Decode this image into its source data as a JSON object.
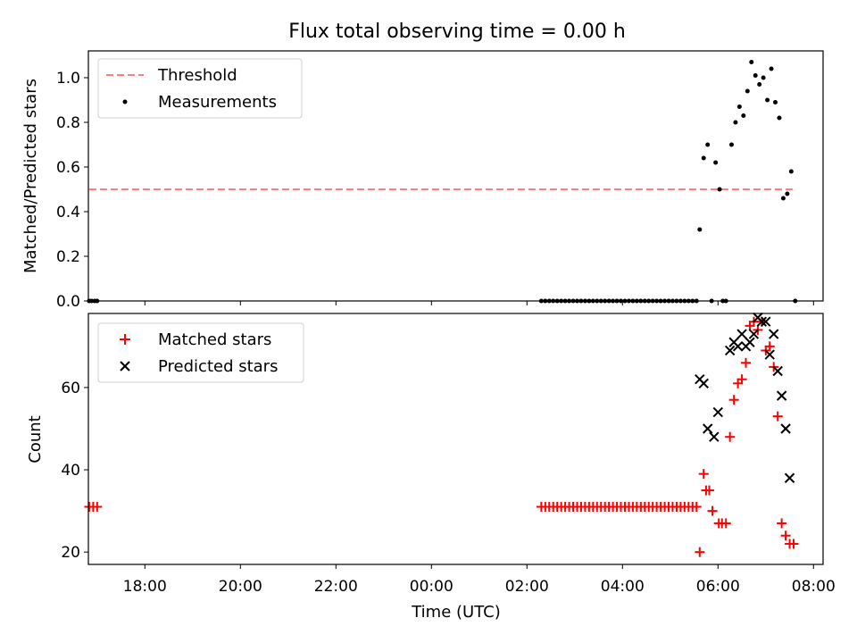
{
  "figure": {
    "title": "Flux total observing time = 0.00 h",
    "xlabel": "Time (UTC)"
  },
  "chart_data": [
    {
      "type": "scatter",
      "panel": "top",
      "ylabel": "Matched/Predicted stars",
      "ylim": [
        0,
        1.12
      ],
      "xlim": [
        "16:49",
        "08:12"
      ],
      "x_tick_labels": [
        "18:00",
        "20:00",
        "22:00",
        "00:00",
        "02:00",
        "04:00",
        "06:00",
        "08:00"
      ],
      "y_ticks": [
        "0.0",
        "0.2",
        "0.4",
        "0.6",
        "0.8",
        "1.0"
      ],
      "legend_position": "top-left",
      "threshold": {
        "name": "Threshold",
        "value": 0.5,
        "x_range": [
          "16:50",
          "07:37"
        ],
        "color": "#ff7f7f"
      },
      "series": [
        {
          "name": "Measurements",
          "color": "#000000",
          "points": [
            [
              "16:50",
              0
            ],
            [
              "16:53",
              0
            ],
            [
              "16:57",
              0
            ],
            [
              "17:00",
              0
            ],
            [
              "02:18",
              0
            ],
            [
              "02:23",
              0
            ],
            [
              "02:28",
              0
            ],
            [
              "02:33",
              0
            ],
            [
              "02:38",
              0
            ],
            [
              "02:43",
              0
            ],
            [
              "02:48",
              0
            ],
            [
              "02:53",
              0
            ],
            [
              "02:58",
              0
            ],
            [
              "03:03",
              0
            ],
            [
              "03:08",
              0
            ],
            [
              "03:13",
              0
            ],
            [
              "03:18",
              0
            ],
            [
              "03:23",
              0
            ],
            [
              "03:28",
              0
            ],
            [
              "03:33",
              0
            ],
            [
              "03:38",
              0
            ],
            [
              "03:43",
              0
            ],
            [
              "03:48",
              0
            ],
            [
              "03:53",
              0
            ],
            [
              "03:58",
              0
            ],
            [
              "04:03",
              0
            ],
            [
              "04:08",
              0
            ],
            [
              "04:13",
              0
            ],
            [
              "04:18",
              0
            ],
            [
              "04:23",
              0
            ],
            [
              "04:28",
              0
            ],
            [
              "04:33",
              0
            ],
            [
              "04:38",
              0
            ],
            [
              "04:43",
              0
            ],
            [
              "04:48",
              0
            ],
            [
              "04:53",
              0
            ],
            [
              "04:58",
              0
            ],
            [
              "05:03",
              0
            ],
            [
              "05:08",
              0
            ],
            [
              "05:13",
              0
            ],
            [
              "05:18",
              0
            ],
            [
              "05:23",
              0
            ],
            [
              "05:28",
              0
            ],
            [
              "05:33",
              0
            ],
            [
              "05:37",
              0.32
            ],
            [
              "05:42",
              0.64
            ],
            [
              "05:47",
              0.7
            ],
            [
              "05:52",
              0.0
            ],
            [
              "05:57",
              0.62
            ],
            [
              "06:02",
              0.5
            ],
            [
              "06:06",
              0.0
            ],
            [
              "06:10",
              0.0
            ],
            [
              "06:17",
              0.7
            ],
            [
              "06:22",
              0.8
            ],
            [
              "06:27",
              0.87
            ],
            [
              "06:32",
              0.83
            ],
            [
              "06:37",
              0.94
            ],
            [
              "06:42",
              1.07
            ],
            [
              "06:47",
              1.01
            ],
            [
              "06:52",
              0.97
            ],
            [
              "06:57",
              1.0
            ],
            [
              "07:02",
              0.9
            ],
            [
              "07:07",
              1.04
            ],
            [
              "07:12",
              0.89
            ],
            [
              "07:17",
              0.82
            ],
            [
              "07:22",
              0.46
            ],
            [
              "07:27",
              0.48
            ],
            [
              "07:32",
              0.58
            ],
            [
              "07:37",
              0.0
            ]
          ]
        }
      ]
    },
    {
      "type": "scatter",
      "panel": "bottom",
      "ylabel": "Count",
      "ylim": [
        17,
        78
      ],
      "xlim": [
        "16:49",
        "08:12"
      ],
      "x_tick_labels": [
        "18:00",
        "20:00",
        "22:00",
        "00:00",
        "02:00",
        "04:00",
        "06:00",
        "08:00"
      ],
      "y_ticks": [
        "20",
        "40",
        "60"
      ],
      "legend_position": "top-left",
      "series": [
        {
          "name": "Matched stars",
          "marker": "+",
          "color": "#ff0000",
          "points": [
            [
              "16:50",
              31
            ],
            [
              "16:55",
              31
            ],
            [
              "17:00",
              31
            ],
            [
              "02:18",
              31
            ],
            [
              "02:23",
              31
            ],
            [
              "02:28",
              31
            ],
            [
              "02:33",
              31
            ],
            [
              "02:38",
              31
            ],
            [
              "02:43",
              31
            ],
            [
              "02:48",
              31
            ],
            [
              "02:53",
              31
            ],
            [
              "02:58",
              31
            ],
            [
              "03:03",
              31
            ],
            [
              "03:08",
              31
            ],
            [
              "03:13",
              31
            ],
            [
              "03:18",
              31
            ],
            [
              "03:23",
              31
            ],
            [
              "03:28",
              31
            ],
            [
              "03:33",
              31
            ],
            [
              "03:38",
              31
            ],
            [
              "03:43",
              31
            ],
            [
              "03:48",
              31
            ],
            [
              "03:53",
              31
            ],
            [
              "03:58",
              31
            ],
            [
              "04:03",
              31
            ],
            [
              "04:08",
              31
            ],
            [
              "04:13",
              31
            ],
            [
              "04:18",
              31
            ],
            [
              "04:23",
              31
            ],
            [
              "04:28",
              31
            ],
            [
              "04:33",
              31
            ],
            [
              "04:38",
              31
            ],
            [
              "04:43",
              31
            ],
            [
              "04:48",
              31
            ],
            [
              "04:53",
              31
            ],
            [
              "04:58",
              31
            ],
            [
              "05:03",
              31
            ],
            [
              "05:08",
              31
            ],
            [
              "05:13",
              31
            ],
            [
              "05:18",
              31
            ],
            [
              "05:23",
              31
            ],
            [
              "05:28",
              31
            ],
            [
              "05:33",
              31
            ],
            [
              "05:37",
              20
            ],
            [
              "05:42",
              39
            ],
            [
              "05:45",
              35
            ],
            [
              "05:49",
              35
            ],
            [
              "05:53",
              30
            ],
            [
              "06:01",
              27
            ],
            [
              "06:05",
              27
            ],
            [
              "06:10",
              27
            ],
            [
              "06:15",
              48
            ],
            [
              "06:20",
              57
            ],
            [
              "06:25",
              61
            ],
            [
              "06:30",
              62
            ],
            [
              "06:35",
              66
            ],
            [
              "06:40",
              75
            ],
            [
              "06:45",
              76
            ],
            [
              "06:50",
              74
            ],
            [
              "06:55",
              76
            ],
            [
              "07:00",
              69
            ],
            [
              "07:05",
              70
            ],
            [
              "07:10",
              65
            ],
            [
              "07:15",
              53
            ],
            [
              "07:20",
              27
            ],
            [
              "07:25",
              24
            ],
            [
              "07:30",
              22
            ],
            [
              "07:35",
              22
            ]
          ]
        },
        {
          "name": "Predicted stars",
          "marker": "x",
          "color": "#000000",
          "points": [
            [
              "05:37",
              62
            ],
            [
              "05:42",
              61
            ],
            [
              "05:47",
              50
            ],
            [
              "05:55",
              48
            ],
            [
              "06:00",
              54
            ],
            [
              "06:15",
              69
            ],
            [
              "06:20",
              71
            ],
            [
              "06:25",
              70
            ],
            [
              "06:30",
              73
            ],
            [
              "06:35",
              70
            ],
            [
              "06:40",
              71
            ],
            [
              "06:45",
              73
            ],
            [
              "06:50",
              77
            ],
            [
              "06:55",
              76
            ],
            [
              "07:00",
              76
            ],
            [
              "07:05",
              68
            ],
            [
              "07:10",
              73
            ],
            [
              "07:15",
              64
            ],
            [
              "07:20",
              58
            ],
            [
              "07:25",
              50
            ],
            [
              "07:30",
              38
            ]
          ]
        }
      ]
    }
  ]
}
